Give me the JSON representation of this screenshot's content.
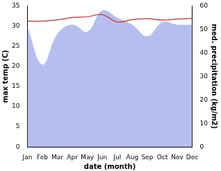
{
  "chart_data": {
    "type": "line",
    "x_label": "date (month)",
    "y_label": "max temp (C)",
    "y2_label": "med. precipitation (kg/m2)",
    "categories": [
      "Jan",
      "Feb",
      "Mar",
      "Apr",
      "May",
      "Jun",
      "Jul",
      "Aug",
      "Sep",
      "Oct",
      "Nov",
      "Dec"
    ],
    "series": [
      {
        "name": "med. precipitation",
        "type": "area",
        "axis": "y2",
        "color": "#b4bff0",
        "values": [
          51,
          35,
          48,
          52,
          49,
          58,
          55,
          52,
          47,
          53,
          52,
          52
        ]
      },
      {
        "name": "max temp",
        "type": "line",
        "axis": "y",
        "color": "#c84b4b",
        "values": [
          31.2,
          31.2,
          31.5,
          32.1,
          32.3,
          32.8,
          31.0,
          31.6,
          31.8,
          31.5,
          31.7,
          31.9
        ]
      }
    ],
    "ylim": [
      0,
      35
    ],
    "yticks": [
      0,
      5,
      10,
      15,
      20,
      25,
      30,
      35
    ],
    "y2lim": [
      0,
      60
    ],
    "y2ticks": [
      0,
      10,
      20,
      30,
      40,
      50,
      60
    ],
    "grid": false
  }
}
